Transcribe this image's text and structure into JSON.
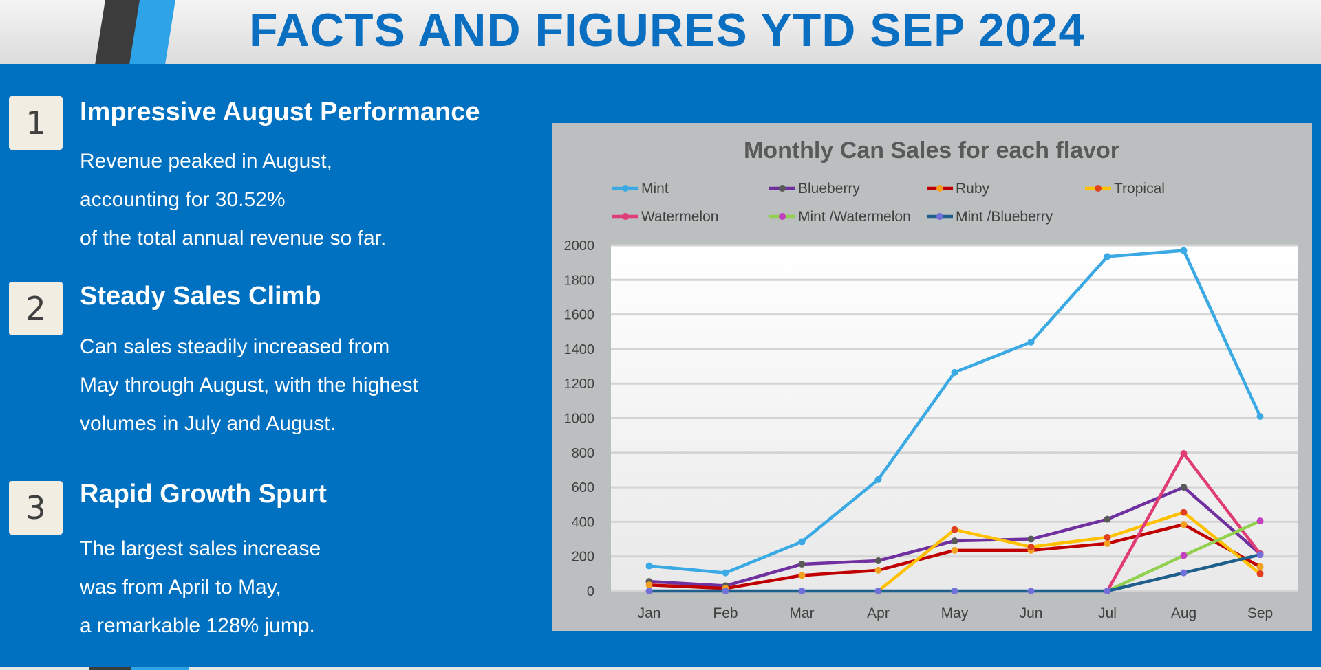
{
  "header": {
    "title": "FACTS AND FIGURES YTD SEP 2024"
  },
  "facts": [
    {
      "number": "1",
      "heading": "Impressive August Performance",
      "lines": [
        "Revenue peaked in August,",
        "accounting for 30.52%",
        "of the total annual revenue so far."
      ]
    },
    {
      "number": "2",
      "heading": "Steady Sales Climb",
      "lines": [
        "Can sales steadily increased from",
        "May through August, with the highest",
        "volumes in July and August."
      ]
    },
    {
      "number": "3",
      "heading": "Rapid Growth Spurt",
      "lines": [
        "The largest sales increase",
        "was from April to May,",
        "a remarkable 128% jump."
      ]
    }
  ],
  "colors": {
    "background": "#0070c0",
    "title": "#0b6fc1",
    "chart_panel": "#bcbfbf",
    "chart_title": "#595959"
  },
  "chart_data": {
    "type": "line",
    "title": "Monthly Can Sales for each flavor",
    "xlabel": "",
    "ylabel": "",
    "categories": [
      "Jan",
      "Feb",
      "Mar",
      "Apr",
      "May",
      "Jun",
      "Jul",
      "Aug",
      "Sep"
    ],
    "ylim": [
      0,
      2000
    ],
    "yticks": [
      0,
      200,
      400,
      600,
      800,
      1000,
      1200,
      1400,
      1600,
      1800,
      2000
    ],
    "grid": true,
    "legend_position": "top",
    "series": [
      {
        "name": "Mint",
        "color": "#3aa9e4",
        "marker": "#3aa9e4",
        "values": [
          145,
          105,
          285,
          645,
          1265,
          1440,
          1935,
          1970,
          1010
        ]
      },
      {
        "name": "Blueberry",
        "color": "#7030a0",
        "marker": "#595959",
        "values": [
          55,
          30,
          155,
          175,
          290,
          300,
          415,
          600,
          215
        ]
      },
      {
        "name": "Ruby",
        "color": "#c00000",
        "marker": "#f4a020",
        "values": [
          35,
          15,
          90,
          120,
          235,
          235,
          275,
          385,
          140
        ]
      },
      {
        "name": "Tropical",
        "color": "#ffc000",
        "marker": "#e04020",
        "values": [
          null,
          null,
          null,
          0,
          355,
          255,
          310,
          455,
          100
        ]
      },
      {
        "name": "Watermelon",
        "color": "#e03c75",
        "marker": "#e03c75",
        "values": [
          null,
          null,
          null,
          null,
          null,
          null,
          0,
          795,
          215
        ]
      },
      {
        "name": "Mint /Watermelon",
        "color": "#92d050",
        "marker": "#c040c0",
        "values": [
          null,
          null,
          null,
          null,
          null,
          null,
          0,
          205,
          405
        ]
      },
      {
        "name": "Mint /Blueberry",
        "color": "#1f5f8b",
        "marker": "#7070d8",
        "values": [
          0,
          0,
          0,
          0,
          0,
          0,
          0,
          105,
          210
        ]
      }
    ]
  }
}
